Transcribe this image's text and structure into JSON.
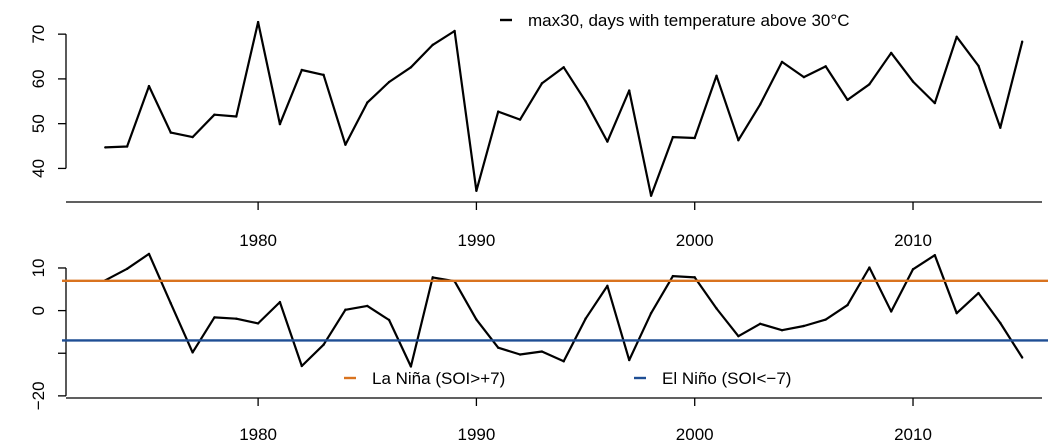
{
  "chart_data": [
    {
      "type": "line",
      "title": "",
      "xlabel": "",
      "ylabel": "",
      "xlim": [
        1971.2,
        2016.0
      ],
      "ylim": [
        32.5,
        74.5
      ],
      "x_ticks": [
        1980,
        1990,
        2000,
        2010
      ],
      "y_ticks": [
        40,
        50,
        60,
        70
      ],
      "grid": false,
      "legend_position": "top-right",
      "series": [
        {
          "name": "max30, days with temperature above 30°C",
          "color": "#000000",
          "x": [
            1973,
            1974,
            1975,
            1976,
            1977,
            1978,
            1979,
            1980,
            1981,
            1982,
            1983,
            1984,
            1985,
            1986,
            1987,
            1988,
            1989,
            1990,
            1991,
            1992,
            1993,
            1994,
            1995,
            1996,
            1997,
            1998,
            1999,
            2000,
            2001,
            2002,
            2003,
            2004,
            2005,
            2006,
            2007,
            2008,
            2009,
            2010,
            2011,
            2012,
            2013,
            2014,
            2015
          ],
          "values": [
            44.7,
            44.9,
            58.4,
            48.0,
            47.0,
            52.0,
            51.6,
            72.7,
            49.9,
            62.0,
            60.9,
            45.3,
            54.7,
            59.3,
            62.6,
            67.6,
            70.7,
            35.0,
            52.7,
            50.9,
            59.0,
            62.6,
            55.0,
            46.0,
            57.4,
            33.9,
            47.0,
            46.8,
            60.7,
            46.3,
            54.3,
            63.8,
            60.4,
            62.8,
            55.3,
            58.8,
            65.8,
            59.4,
            54.6,
            69.4,
            62.9,
            49.1,
            68.3
          ]
        }
      ]
    },
    {
      "type": "line",
      "title": "",
      "xlabel": "",
      "ylabel": "",
      "xlim": [
        1971.2,
        2016.0
      ],
      "ylim": [
        -20.5,
        17.5
      ],
      "x_ticks": [
        1980,
        1990,
        2000,
        2010
      ],
      "y_ticks": [
        -20,
        -10,
        0,
        10
      ],
      "y_tick_labels": [
        "−20",
        "",
        "0",
        "10"
      ],
      "grid": false,
      "legend_position": "bottom-center",
      "series": [
        {
          "name": "",
          "color": "#000000",
          "x": [
            1973,
            1974,
            1975,
            1976,
            1977,
            1978,
            1979,
            1980,
            1981,
            1982,
            1983,
            1984,
            1985,
            1986,
            1987,
            1988,
            1989,
            1990,
            1991,
            1992,
            1993,
            1994,
            1995,
            1996,
            1997,
            1998,
            1999,
            2000,
            2001,
            2002,
            2003,
            2004,
            2005,
            2006,
            2007,
            2008,
            2009,
            2010,
            2011,
            2012,
            2013,
            2014,
            2015
          ],
          "values": [
            7.1,
            9.8,
            13.3,
            1.7,
            -9.8,
            -1.6,
            -1.9,
            -3.0,
            2.0,
            -13.0,
            -8.0,
            0.2,
            1.1,
            -2.2,
            -13.1,
            7.8,
            6.9,
            -2.1,
            -8.7,
            -10.3,
            -9.6,
            -11.9,
            -1.9,
            5.8,
            -11.6,
            -0.6,
            8.1,
            7.8,
            0.5,
            -6.0,
            -3.1,
            -4.6,
            -3.6,
            -2.1,
            1.3,
            10.1,
            -0.2,
            9.7,
            13.0,
            -0.6,
            4.1,
            -2.9,
            -11.0
          ]
        },
        {
          "name": "La Niña (SOI>+7)",
          "color": "#d9731f",
          "type": "hline",
          "y": 7
        },
        {
          "name": "El Niño (SOI<−7)",
          "color": "#1f4e94",
          "type": "hline",
          "y": -7
        }
      ]
    }
  ]
}
